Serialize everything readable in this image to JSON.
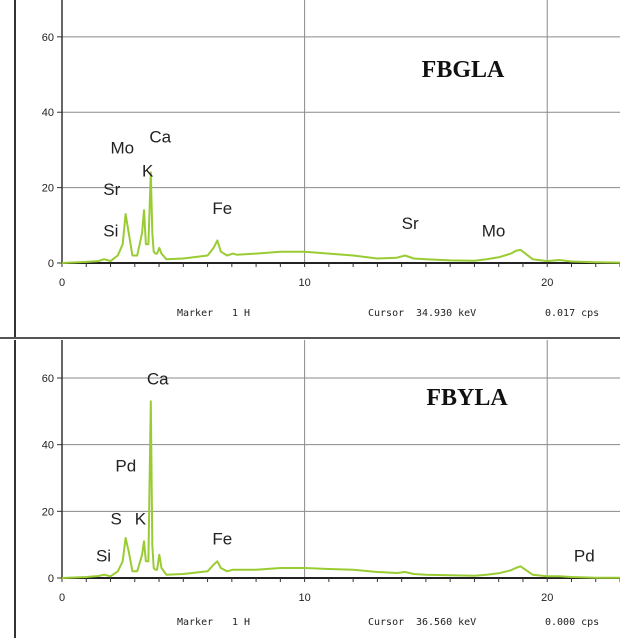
{
  "chart_data": [
    {
      "type": "line",
      "title": "FBGLA",
      "xlabel": "",
      "ylabel": "",
      "xlim": [
        0,
        23
      ],
      "ylim": [
        0,
        65
      ],
      "x_ticks": [
        "0",
        "10",
        "20"
      ],
      "y_ticks": [
        "0",
        "20",
        "40",
        "60"
      ],
      "grid": true,
      "line_color": "#99cc33",
      "footer": {
        "marker_label": "Marker",
        "marker_value": "1 H",
        "cursor_label": "Cursor",
        "cursor_value": "34.930 keV",
        "cps_value": "0.017 cps"
      },
      "annotations": [
        {
          "text": "Mo",
          "x": 2.0,
          "y": 29
        },
        {
          "text": "Ca",
          "x": 3.6,
          "y": 32
        },
        {
          "text": "K",
          "x": 3.3,
          "y": 23
        },
        {
          "text": "Sr",
          "x": 1.7,
          "y": 18
        },
        {
          "text": "Si",
          "x": 1.7,
          "y": 7
        },
        {
          "text": "Fe",
          "x": 6.2,
          "y": 13
        },
        {
          "text": "Sr",
          "x": 14.0,
          "y": 9
        },
        {
          "text": "Mo",
          "x": 17.3,
          "y": 7
        }
      ],
      "series": [
        {
          "x": [
            0,
            1.0,
            1.5,
            1.74,
            2.0,
            2.3,
            2.5,
            2.62,
            2.75,
            2.9,
            3.1,
            3.3,
            3.38,
            3.46,
            3.56,
            3.66,
            3.72,
            3.78,
            3.85,
            3.92,
            4.01,
            4.1,
            4.3,
            5.0,
            6.0,
            6.25,
            6.4,
            6.55,
            6.8,
            7.05,
            7.2,
            8,
            9,
            10,
            11,
            12,
            13,
            13.8,
            14.14,
            14.5,
            15,
            16,
            17,
            17.5,
            18,
            18.5,
            18.7,
            18.9,
            19.1,
            19.4,
            20,
            20.5,
            21,
            22,
            23
          ],
          "y": [
            0,
            0.3,
            0.5,
            1.0,
            0.5,
            2,
            5,
            13,
            8,
            2,
            2,
            8,
            14,
            5,
            5,
            24,
            8,
            3,
            2.5,
            2.5,
            4,
            2.5,
            1,
            1.2,
            2,
            4,
            6,
            3,
            2,
            2.5,
            2.2,
            2.5,
            3,
            3,
            2.5,
            2,
            1.2,
            1.4,
            2,
            1.2,
            1,
            0.7,
            0.6,
            1,
            1.5,
            2.5,
            3.2,
            3.5,
            2.5,
            1,
            0.5,
            0.8,
            0.4,
            0.2,
            0.1
          ]
        }
      ]
    },
    {
      "type": "line",
      "title": "FBYLA",
      "xlabel": "",
      "ylabel": "",
      "xlim": [
        0,
        23
      ],
      "ylim": [
        0,
        66
      ],
      "x_ticks": [
        "0",
        "10",
        "20"
      ],
      "y_ticks": [
        "0",
        "20",
        "40",
        "60"
      ],
      "grid": true,
      "line_color": "#99cc33",
      "footer": {
        "marker_label": "Marker",
        "marker_value": "1 H",
        "cursor_label": "Cursor",
        "cursor_value": "36.560 keV",
        "cps_value": "0.000 cps"
      },
      "annotations": [
        {
          "text": "Ca",
          "x": 3.5,
          "y": 58
        },
        {
          "text": "Pd",
          "x": 2.2,
          "y": 32
        },
        {
          "text": "S",
          "x": 2.0,
          "y": 16
        },
        {
          "text": "K",
          "x": 3.0,
          "y": 16
        },
        {
          "text": "Si",
          "x": 1.4,
          "y": 5
        },
        {
          "text": "Fe",
          "x": 6.2,
          "y": 10
        },
        {
          "text": "Pd",
          "x": 21.1,
          "y": 5
        }
      ],
      "series": [
        {
          "x": [
            0,
            1.0,
            1.5,
            1.74,
            2.0,
            2.3,
            2.5,
            2.62,
            2.75,
            2.9,
            3.1,
            3.3,
            3.38,
            3.46,
            3.56,
            3.66,
            3.72,
            3.78,
            3.85,
            3.92,
            4.01,
            4.1,
            4.3,
            5.0,
            6.0,
            6.25,
            6.4,
            6.55,
            6.8,
            7.05,
            7.2,
            8,
            9,
            10,
            11,
            12,
            13,
            13.8,
            14.14,
            14.5,
            15,
            16,
            17,
            17.5,
            18,
            18.5,
            18.7,
            18.9,
            19.1,
            19.4,
            20,
            20.5,
            21,
            22,
            23
          ],
          "y": [
            0,
            0.3,
            0.6,
            1.0,
            0.5,
            2,
            5,
            12,
            8,
            2,
            2,
            7,
            11,
            5,
            5,
            53,
            10,
            3,
            2.5,
            2.5,
            7,
            3,
            1,
            1.2,
            2,
            4,
            5,
            3,
            2,
            2.5,
            2.5,
            2.5,
            3,
            3,
            2.7,
            2.5,
            1.8,
            1.5,
            1.8,
            1.2,
            1,
            0.8,
            0.7,
            1,
            1.4,
            2.3,
            3,
            3.5,
            2.5,
            1,
            0.5,
            0.5,
            0.3,
            0.1,
            0.1
          ]
        }
      ]
    }
  ]
}
